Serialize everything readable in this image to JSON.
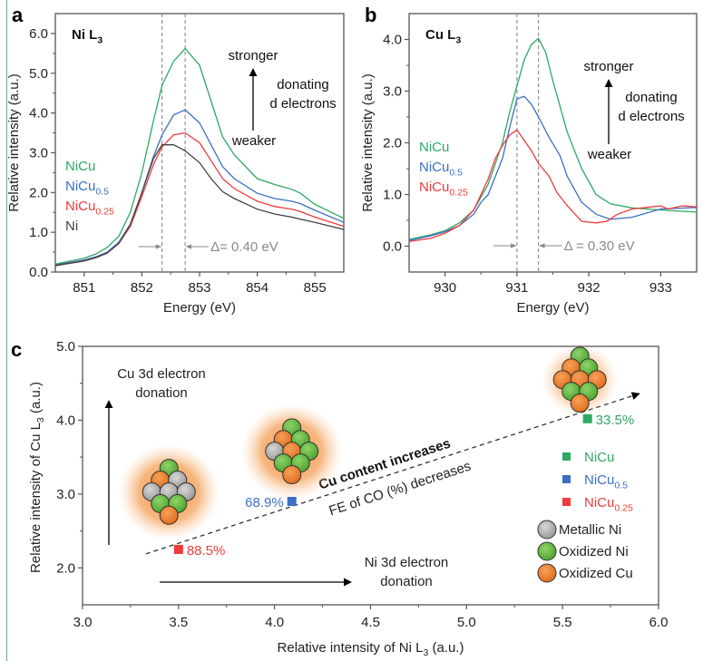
{
  "colors": {
    "NiCu": "#2ea862",
    "NiCu0.5": "#3a6fc4",
    "NiCu0.25": "#ee3b3b",
    "Ni": "#404040",
    "axis": "#555555",
    "annot_gray": "#8a8a8a",
    "metallic_ni": "#a9a9a9",
    "oxidized_ni": "#6abf45",
    "oxidized_cu": "#ee8030",
    "glow": "#f39a4c"
  },
  "chart_data": [
    {
      "panel": "a",
      "type": "line",
      "title": "Ni L3",
      "title_main": "Ni L",
      "title_sub": "3",
      "xlabel": "Energy (eV)",
      "ylabel": "Relative intensity (a.u.)",
      "xlim": [
        850.5,
        855.5
      ],
      "ylim": [
        0,
        6.5
      ],
      "xticks": [
        851,
        852,
        853,
        854,
        855
      ],
      "xtick_labels": [
        "851",
        "852",
        "853",
        "854",
        "855"
      ],
      "yticks": [
        0,
        1,
        2,
        3,
        4,
        5,
        6
      ],
      "ytick_labels": [
        "0.0",
        "1.0",
        "2.0",
        "3.0",
        "4.0",
        "5.0",
        "6.0"
      ],
      "vlines": [
        852.35,
        852.75
      ],
      "shift_label": "Δ= 0.40 eV",
      "annotation": {
        "top": "stronger",
        "middle": [
          "donating",
          "d electrons"
        ],
        "bottom": "weaker"
      },
      "legend": [
        {
          "name": "NiCu",
          "main": "NiCu",
          "sub": "",
          "color_key": "NiCu"
        },
        {
          "name": "NiCu0.5",
          "main": "NiCu",
          "sub": "0.5",
          "color_key": "NiCu0.5"
        },
        {
          "name": "NiCu0.25",
          "main": "NiCu",
          "sub": "0.25",
          "color_key": "NiCu0.25"
        },
        {
          "name": "Ni",
          "main": "Ni",
          "sub": "",
          "color_key": "Ni"
        }
      ],
      "series": [
        {
          "name": "NiCu",
          "color_key": "NiCu",
          "x": [
            850.5,
            851.0,
            851.2,
            851.4,
            851.6,
            851.8,
            852.0,
            852.2,
            852.35,
            852.55,
            852.75,
            853.0,
            853.2,
            853.4,
            853.6,
            854.0,
            854.3,
            854.6,
            854.75,
            855.0,
            855.5
          ],
          "y": [
            0.2,
            0.35,
            0.45,
            0.62,
            0.9,
            1.5,
            2.5,
            3.8,
            4.7,
            5.3,
            5.62,
            5.2,
            4.3,
            3.4,
            2.95,
            2.35,
            2.2,
            2.08,
            1.98,
            1.7,
            1.35
          ]
        },
        {
          "name": "NiCu0.5",
          "color_key": "NiCu0.5",
          "x": [
            850.5,
            851.0,
            851.2,
            851.4,
            851.6,
            851.8,
            852.0,
            852.2,
            852.35,
            852.55,
            852.75,
            853.0,
            853.2,
            853.4,
            853.6,
            854.0,
            854.3,
            854.6,
            854.75,
            855.0,
            855.5
          ],
          "y": [
            0.18,
            0.3,
            0.38,
            0.5,
            0.75,
            1.2,
            2.0,
            2.9,
            3.45,
            3.95,
            4.08,
            3.75,
            3.2,
            2.65,
            2.35,
            1.98,
            1.85,
            1.78,
            1.72,
            1.55,
            1.25
          ]
        },
        {
          "name": "NiCu0.25",
          "color_key": "NiCu0.25",
          "x": [
            850.5,
            851.0,
            851.2,
            851.4,
            851.6,
            851.8,
            852.0,
            852.2,
            852.35,
            852.55,
            852.75,
            853.0,
            853.2,
            853.4,
            853.6,
            854.0,
            854.3,
            854.6,
            854.75,
            855.0,
            855.5
          ],
          "y": [
            0.16,
            0.28,
            0.36,
            0.48,
            0.72,
            1.15,
            1.9,
            2.7,
            3.15,
            3.45,
            3.5,
            3.25,
            2.8,
            2.35,
            2.1,
            1.78,
            1.65,
            1.58,
            1.52,
            1.38,
            1.15
          ]
        },
        {
          "name": "Ni",
          "color_key": "Ni",
          "x": [
            850.5,
            851.0,
            851.2,
            851.4,
            851.6,
            851.8,
            852.0,
            852.2,
            852.35,
            852.55,
            852.75,
            853.0,
            853.2,
            853.4,
            853.6,
            854.0,
            854.3,
            854.6,
            854.75,
            855.0,
            855.5
          ],
          "y": [
            0.16,
            0.28,
            0.36,
            0.48,
            0.72,
            1.2,
            2.0,
            2.85,
            3.2,
            3.2,
            3.05,
            2.75,
            2.35,
            2.02,
            1.85,
            1.58,
            1.46,
            1.38,
            1.33,
            1.25,
            1.07
          ]
        }
      ]
    },
    {
      "panel": "b",
      "type": "line",
      "title": "Cu L3",
      "title_main": "Cu L",
      "title_sub": "3",
      "xlabel": "Energy (eV)",
      "ylabel": "Relative intensity (a.u.)",
      "xlim": [
        929.5,
        933.5
      ],
      "ylim": [
        -0.5,
        4.5
      ],
      "xticks": [
        930,
        931,
        932,
        933
      ],
      "xtick_labels": [
        "930",
        "931",
        "932",
        "933"
      ],
      "yticks": [
        0,
        1,
        2,
        3,
        4
      ],
      "ytick_labels": [
        "0.0",
        "1.0",
        "2.0",
        "3.0",
        "4.0"
      ],
      "vlines": [
        931.0,
        931.3
      ],
      "shift_label": "Δ = 0.30 eV",
      "annotation": {
        "top": "stronger",
        "middle": [
          "donating",
          "d electrons"
        ],
        "bottom": "weaker"
      },
      "legend": [
        {
          "name": "NiCu",
          "main": "NiCu",
          "sub": "",
          "color_key": "NiCu"
        },
        {
          "name": "NiCu0.5",
          "main": "NiCu",
          "sub": "0.5",
          "color_key": "NiCu0.5"
        },
        {
          "name": "NiCu0.25",
          "main": "NiCu",
          "sub": "0.25",
          "color_key": "NiCu0.25"
        }
      ],
      "series": [
        {
          "name": "NiCu",
          "color_key": "NiCu",
          "x": [
            929.5,
            929.8,
            930.0,
            930.2,
            930.4,
            930.6,
            930.8,
            930.9,
            931.0,
            931.1,
            931.2,
            931.3,
            931.4,
            931.5,
            931.7,
            931.9,
            932.1,
            932.3,
            932.6,
            933.0,
            933.5
          ],
          "y": [
            0.13,
            0.22,
            0.3,
            0.45,
            0.7,
            1.2,
            2.0,
            2.6,
            3.1,
            3.6,
            3.9,
            4.02,
            3.75,
            3.2,
            2.2,
            1.5,
            1.0,
            0.82,
            0.74,
            0.7,
            0.66
          ]
        },
        {
          "name": "NiCu0.5",
          "color_key": "NiCu0.5",
          "x": [
            929.5,
            929.8,
            930.0,
            930.2,
            930.4,
            930.5,
            930.6,
            930.8,
            930.9,
            931.0,
            931.1,
            931.2,
            931.3,
            931.45,
            931.6,
            931.7,
            931.9,
            932.1,
            932.3,
            932.6,
            933.0,
            933.5
          ],
          "y": [
            0.11,
            0.2,
            0.28,
            0.4,
            0.62,
            0.85,
            1.0,
            1.7,
            2.3,
            2.85,
            2.9,
            2.75,
            2.5,
            2.1,
            1.75,
            1.35,
            0.85,
            0.62,
            0.52,
            0.56,
            0.72,
            0.75
          ]
        },
        {
          "name": "NiCu0.25",
          "color_key": "NiCu0.25",
          "x": [
            929.5,
            929.8,
            930.0,
            930.2,
            930.4,
            930.6,
            930.7,
            930.8,
            930.9,
            931.0,
            931.1,
            931.2,
            931.3,
            931.45,
            931.55,
            931.7,
            931.9,
            932.1,
            932.25,
            932.4,
            932.6,
            932.8,
            933.0,
            933.1,
            933.3,
            933.5
          ],
          "y": [
            0.09,
            0.15,
            0.25,
            0.4,
            0.7,
            1.3,
            1.7,
            1.95,
            2.15,
            2.25,
            2.05,
            1.85,
            1.6,
            1.35,
            1.05,
            0.78,
            0.48,
            0.45,
            0.48,
            0.62,
            0.72,
            0.75,
            0.78,
            0.72,
            0.78,
            0.76
          ]
        }
      ]
    },
    {
      "panel": "c",
      "type": "scatter",
      "xlabel": "Relative intensity of Ni L3 (a.u.)",
      "xlabel_pre": "Relative intensity of Ni L",
      "xlabel_sub": "3",
      "xlabel_post": " (a.u.)",
      "ylabel": "Relative intensity of Cu L3 (a.u.)",
      "ylabel_pre": "Relative intensity of Cu L",
      "ylabel_sub": "3",
      "ylabel_post": " (a.u.)",
      "xlim": [
        3.0,
        6.0
      ],
      "ylim": [
        1.5,
        5.0
      ],
      "xticks": [
        3.0,
        3.5,
        4.0,
        4.5,
        5.0,
        5.5,
        6.0
      ],
      "xtick_labels": [
        "3.0",
        "3.5",
        "4.0",
        "4.5",
        "5.0",
        "5.5",
        "6.0"
      ],
      "yticks": [
        2.0,
        3.0,
        4.0,
        5.0
      ],
      "ytick_labels": [
        "2.0",
        "3.0",
        "4.0",
        "5.0"
      ],
      "points": [
        {
          "name": "NiCu",
          "x": 5.63,
          "y": 4.02,
          "label": "33.5%",
          "color_key": "NiCu"
        },
        {
          "name": "NiCu0.5",
          "x": 4.09,
          "y": 2.9,
          "label": "68.9%",
          "color_key": "NiCu0.5"
        },
        {
          "name": "NiCu0.25",
          "x": 3.5,
          "y": 2.25,
          "label": "88.5%",
          "color_key": "NiCu0.25"
        }
      ],
      "trend_line": {
        "from": [
          3.33,
          2.19
        ],
        "to": [
          5.9,
          4.36
        ]
      },
      "trend_text_1": "Cu content increases",
      "trend_text_2": "FE of CO (%) decreases",
      "cu_arrow_text": [
        "Cu 3d electron",
        "donation"
      ],
      "ni_arrow_text": [
        "Ni 3d electron",
        "donation"
      ],
      "legend_series": [
        {
          "name": "NiCu",
          "main": "NiCu",
          "sub": "",
          "color_key": "NiCu"
        },
        {
          "name": "NiCu0.5",
          "main": "NiCu",
          "sub": "0.5",
          "color_key": "NiCu0.5"
        },
        {
          "name": "NiCu0.25",
          "main": "NiCu",
          "sub": "0.25",
          "color_key": "NiCu0.25"
        }
      ],
      "legend_atoms": [
        {
          "label": "Metallic Ni",
          "color_key": "metallic_ni"
        },
        {
          "label": "Oxidized Ni",
          "color_key": "oxidized_ni"
        },
        {
          "label": "Oxidized Cu",
          "color_key": "oxidized_cu"
        }
      ],
      "clusters": [
        {
          "name": "cluster-nicu0.25",
          "at": [
            3.45,
            2.95
          ],
          "atoms": [
            "G",
            "O",
            "M",
            "M",
            "M",
            "M",
            "G",
            "G",
            "O"
          ]
        },
        {
          "name": "cluster-nicu0.5",
          "at": [
            4.09,
            3.5
          ],
          "atoms": [
            "G",
            "O",
            "G",
            "M",
            "O",
            "G",
            "G",
            "G",
            "O"
          ]
        },
        {
          "name": "cluster-nicu",
          "at": [
            5.59,
            4.47
          ],
          "atoms": [
            "G",
            "O",
            "G",
            "O",
            "O",
            "O",
            "G",
            "G",
            "O"
          ]
        }
      ]
    }
  ],
  "panel_labels": [
    "a",
    "b",
    "c"
  ]
}
